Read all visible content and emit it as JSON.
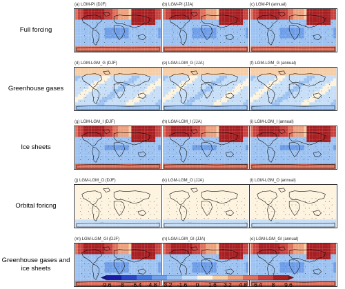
{
  "rows": [
    {
      "label": "Full forcing",
      "panels": [
        {
          "title": "(a) LGM-PI (DJF)",
          "pattern": "full"
        },
        {
          "title": "(b) LGM-PI (JJA)",
          "pattern": "full"
        },
        {
          "title": "(c) LGM-PI (annual)",
          "pattern": "full"
        }
      ]
    },
    {
      "label": "Greenhouse gases",
      "panels": [
        {
          "title": "(d) LGM-LGM_G (DJF)",
          "pattern": "ghg"
        },
        {
          "title": "(e) LGM-LGM_G (JJA)",
          "pattern": "ghg"
        },
        {
          "title": "(f) LGM-LGM_G (annual)",
          "pattern": "ghg"
        }
      ]
    },
    {
      "label": "Ice sheets",
      "panels": [
        {
          "title": "(g) LGM-LGM_I (DJF)",
          "pattern": "ice"
        },
        {
          "title": "(h) LGM-LGM_I (JJA)",
          "pattern": "ice"
        },
        {
          "title": "(i) LGM-LGM_I (annual)",
          "pattern": "ice"
        }
      ]
    },
    {
      "label": "Orbital foricng",
      "panels": [
        {
          "title": "(j) LGM-LGM_O (DJF)",
          "pattern": "orb"
        },
        {
          "title": "(k) LGM-LGM_O (JJA)",
          "pattern": "orb"
        },
        {
          "title": "(l) LGM-LGM_O (annual)",
          "pattern": "orb"
        }
      ]
    },
    {
      "label": "Greenhouse gases and ice sheets",
      "panels": [
        {
          "title": "(m) LGM-LGM_GI (DJF)",
          "pattern": "full"
        },
        {
          "title": "(n) LGM-LGM_GI (JJA)",
          "pattern": "full"
        },
        {
          "title": "(o) LGM-LGM_GI (annual)",
          "pattern": "full"
        }
      ]
    }
  ],
  "colorbar": {
    "ticks": [
      "-9.6",
      "-8",
      "-6.4",
      "-4.8",
      "-3.2",
      "-1.6",
      "0",
      "1.6",
      "3.2",
      "4.8",
      "6.4",
      "8",
      "9.6"
    ],
    "colors": [
      "#1a1aa8",
      "#2c45c9",
      "#4877de",
      "#6f9fe9",
      "#9cc2f2",
      "#c6def7",
      "#fdf3de",
      "#f6cda5",
      "#eca07c",
      "#de6f5a",
      "#c8413c",
      "#a81f22"
    ]
  }
}
